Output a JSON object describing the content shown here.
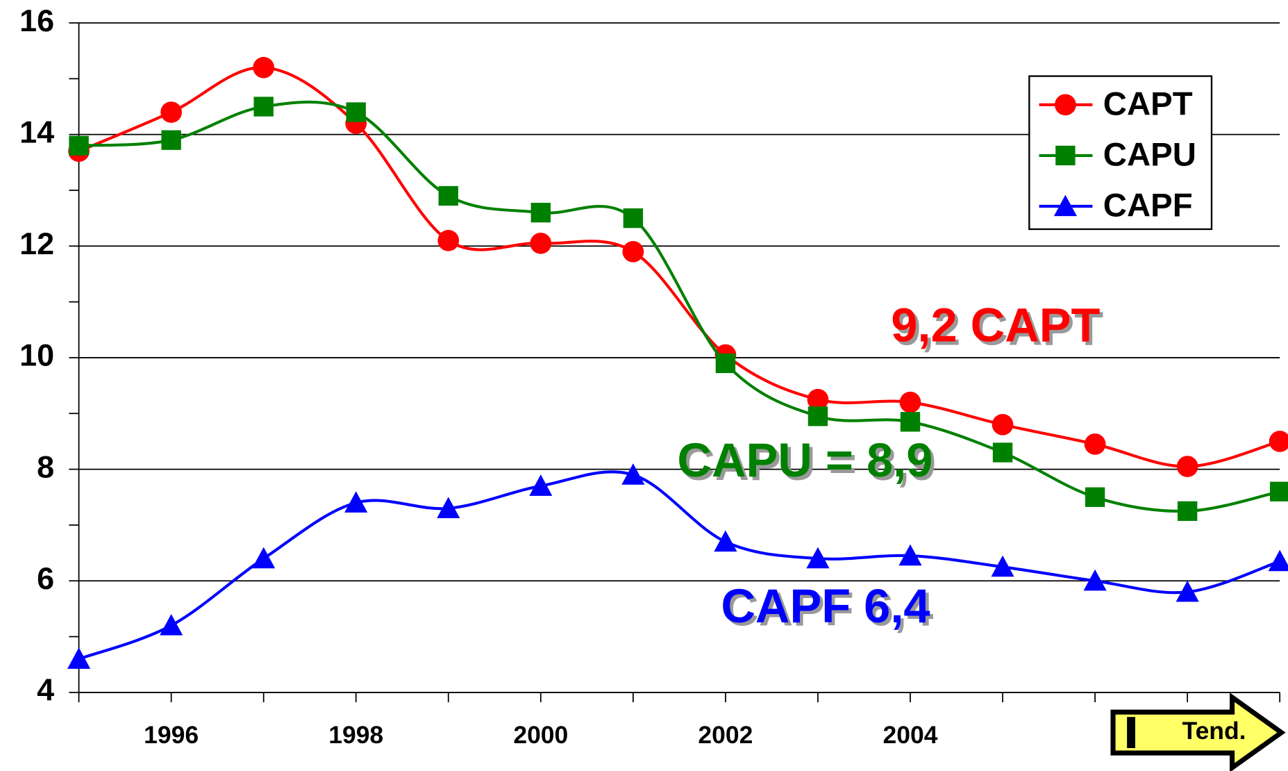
{
  "chart_data": {
    "type": "line",
    "x": [
      1995,
      1996,
      1997,
      1998,
      1999,
      2000,
      2001,
      2002,
      2003,
      2004,
      2005,
      2006,
      2007,
      2008
    ],
    "series": [
      {
        "name": "CAPT",
        "color": "#ff0000",
        "marker": "circle",
        "values": [
          13.7,
          14.4,
          15.2,
          14.2,
          12.1,
          12.05,
          11.9,
          10.05,
          9.25,
          9.2,
          8.8,
          8.45,
          8.05,
          8.5
        ]
      },
      {
        "name": "CAPU",
        "color": "#008000",
        "marker": "square",
        "values": [
          13.8,
          13.9,
          14.5,
          14.4,
          12.9,
          12.6,
          12.5,
          9.9,
          8.95,
          8.85,
          8.3,
          7.5,
          7.25,
          7.6
        ]
      },
      {
        "name": "CAPF",
        "color": "#0000ff",
        "marker": "triangle",
        "values": [
          4.6,
          5.2,
          6.4,
          7.4,
          7.3,
          7.7,
          7.9,
          6.7,
          6.4,
          6.45,
          6.25,
          6.0,
          5.8,
          6.35
        ]
      }
    ],
    "xlim": [
      1995,
      2008
    ],
    "xticks": [
      1996,
      1998,
      2000,
      2002,
      2004
    ],
    "xminor_ticks": [
      1995,
      1996,
      1997,
      1998,
      1999,
      2000,
      2001,
      2002,
      2003,
      2004,
      2005,
      2006,
      2007,
      2008
    ],
    "ylim": [
      4,
      16
    ],
    "yticks": [
      4,
      6,
      8,
      10,
      12,
      14,
      16
    ],
    "yminor_ticks": [
      5,
      7,
      9,
      11,
      13,
      15
    ],
    "grid": true,
    "legend": "upper right",
    "annotations": [
      {
        "text": "9,2  CAPT",
        "color": "#ff0000"
      },
      {
        "text": "CAPU = 8,9",
        "color": "#008000"
      },
      {
        "text": "CAPF  6,4",
        "color": "#0000ff"
      }
    ],
    "button": "Tend."
  }
}
